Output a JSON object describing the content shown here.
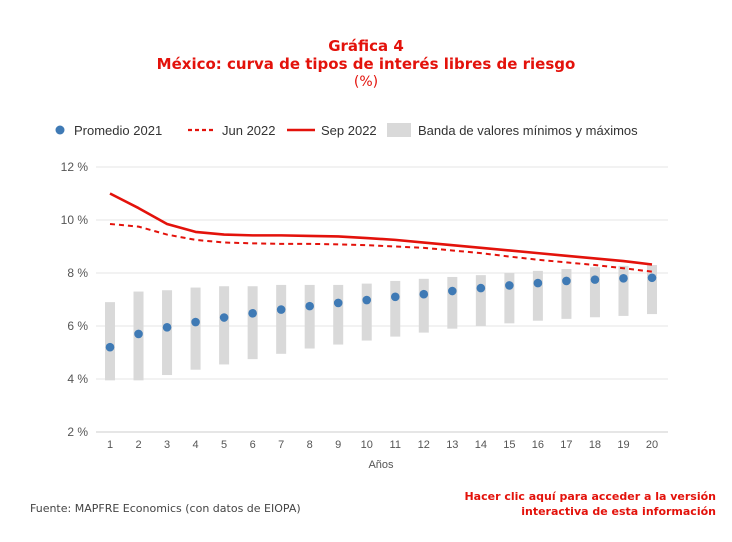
{
  "title": "Gráfica 4",
  "subtitle": "México: curva de tipos de interés libres de riesgo",
  "unit": "(%)",
  "legend": {
    "promedio": "Promedio 2021",
    "jun": "Jun 2022",
    "sep": "Sep 2022",
    "banda": "Banda de valores mínimos y máximos"
  },
  "colors": {
    "red": "#e3120b",
    "dot": "#3f7ab5",
    "band": "#d9d9d9"
  },
  "source": "Fuente: MAPFRE Economics (con datos de EIOPA)",
  "cta": [
    "Hacer clic aquí para acceder a la versión",
    "interactiva de esta información"
  ],
  "chart_data": {
    "type": "line",
    "xlabel": "Años",
    "ylabel": "",
    "ylim": [
      2,
      12
    ],
    "yticks": [
      "2 %",
      "4 %",
      "6 %",
      "8 %",
      "10 %",
      "12 %"
    ],
    "x": [
      1,
      2,
      3,
      4,
      5,
      6,
      7,
      8,
      9,
      10,
      11,
      12,
      13,
      14,
      15,
      16,
      17,
      18,
      19,
      20
    ],
    "series": [
      {
        "name": "Promedio 2021",
        "style": "dots",
        "values": [
          5.2,
          5.7,
          5.95,
          6.15,
          6.32,
          6.48,
          6.62,
          6.75,
          6.87,
          6.98,
          7.1,
          7.2,
          7.32,
          7.43,
          7.53,
          7.62,
          7.7,
          7.75,
          7.8,
          7.82
        ]
      },
      {
        "name": "Jun 2022",
        "style": "dashed",
        "values": [
          9.85,
          9.75,
          9.45,
          9.25,
          9.15,
          9.12,
          9.1,
          9.1,
          9.08,
          9.05,
          9.0,
          8.95,
          8.85,
          8.75,
          8.62,
          8.5,
          8.4,
          8.3,
          8.18,
          8.05
        ]
      },
      {
        "name": "Sep 2022",
        "style": "solid",
        "values": [
          11.0,
          10.45,
          9.85,
          9.55,
          9.45,
          9.42,
          9.42,
          9.4,
          9.38,
          9.32,
          9.25,
          9.15,
          9.05,
          8.95,
          8.85,
          8.75,
          8.65,
          8.55,
          8.45,
          8.32
        ]
      },
      {
        "name": "Banda de valores mínimos y máximos",
        "style": "band",
        "min": [
          3.95,
          3.95,
          4.15,
          4.35,
          4.55,
          4.75,
          4.95,
          5.15,
          5.3,
          5.45,
          5.6,
          5.75,
          5.9,
          6.0,
          6.1,
          6.2,
          6.27,
          6.33,
          6.38,
          6.45
        ],
        "max": [
          6.9,
          7.3,
          7.35,
          7.45,
          7.5,
          7.5,
          7.55,
          7.55,
          7.55,
          7.6,
          7.7,
          7.78,
          7.85,
          7.92,
          8.0,
          8.08,
          8.15,
          8.22,
          8.27,
          8.3
        ]
      }
    ],
    "grid": true,
    "legend_position": "top"
  }
}
